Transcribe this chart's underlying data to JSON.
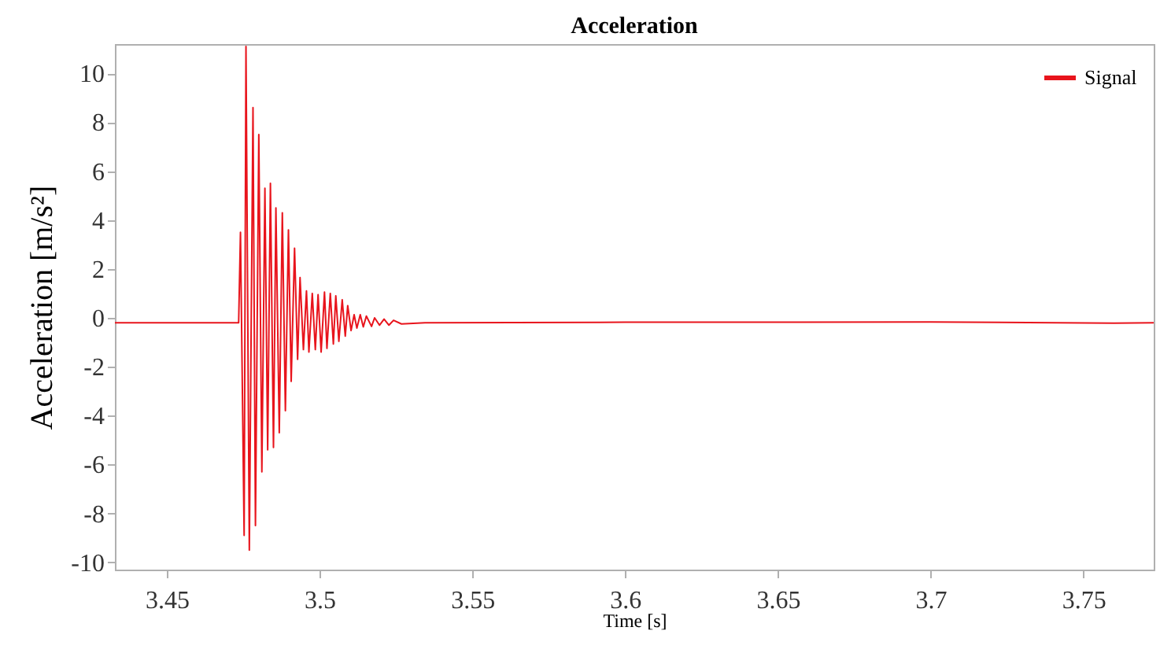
{
  "chart_data": {
    "type": "line",
    "title": "Acceleration",
    "xlabel": "Time [s]",
    "ylabel": "Acceleration [m/s²]",
    "xlim": [
      3.433,
      3.773
    ],
    "xticks": [
      3.45,
      3.5,
      3.55,
      3.6,
      3.65,
      3.7,
      3.75
    ],
    "ylim": [
      -10.3,
      11.2
    ],
    "yticks": [
      -10,
      -8,
      -6,
      -4,
      -2,
      0,
      2,
      4,
      6,
      8,
      10
    ],
    "grid": false,
    "legend": "top right",
    "marker": "none",
    "line_style": "solid",
    "x": [
      3.433,
      3.45,
      3.4735,
      3.4741,
      3.4753,
      3.4759,
      3.477,
      3.4782,
      3.479,
      3.4801,
      3.4811,
      3.4821,
      3.483,
      3.4839,
      3.4849,
      3.4857,
      3.4868,
      3.4878,
      3.4888,
      3.4898,
      3.4907,
      3.4918,
      3.4928,
      3.4936,
      3.4947,
      3.4957,
      3.4965,
      3.4976,
      3.4986,
      3.4995,
      3.5005,
      3.5016,
      3.5024,
      3.5035,
      3.5045,
      3.5053,
      3.5063,
      3.5074,
      3.5084,
      3.5092,
      3.5103,
      3.5113,
      3.5122,
      3.5133,
      3.5143,
      3.5153,
      3.517,
      3.518,
      3.5196,
      3.5211,
      3.5227,
      3.5242,
      3.5268,
      3.5345,
      3.6,
      3.7,
      3.76,
      3.773
    ],
    "series": [
      {
        "name": "Signal",
        "color": "#e8141c",
        "values": [
          -0.2,
          -0.2,
          -0.2,
          3.5,
          -8.9,
          11.1,
          -9.5,
          8.6,
          -8.5,
          7.5,
          -6.3,
          5.3,
          -5.4,
          5.5,
          -5.3,
          4.5,
          -4.7,
          4.3,
          -3.8,
          3.6,
          -2.6,
          2.85,
          -1.7,
          1.65,
          -1.3,
          1.1,
          -1.4,
          1.0,
          -1.3,
          0.95,
          -1.4,
          1.05,
          -1.25,
          1.0,
          -1.07,
          0.9,
          -0.96,
          0.74,
          -0.75,
          0.5,
          -0.52,
          0.13,
          -0.42,
          0.13,
          -0.37,
          0.07,
          -0.35,
          0.0,
          -0.3,
          -0.05,
          -0.3,
          -0.1,
          -0.25,
          -0.2,
          -0.18,
          -0.17,
          -0.22,
          -0.2
        ]
      }
    ]
  }
}
